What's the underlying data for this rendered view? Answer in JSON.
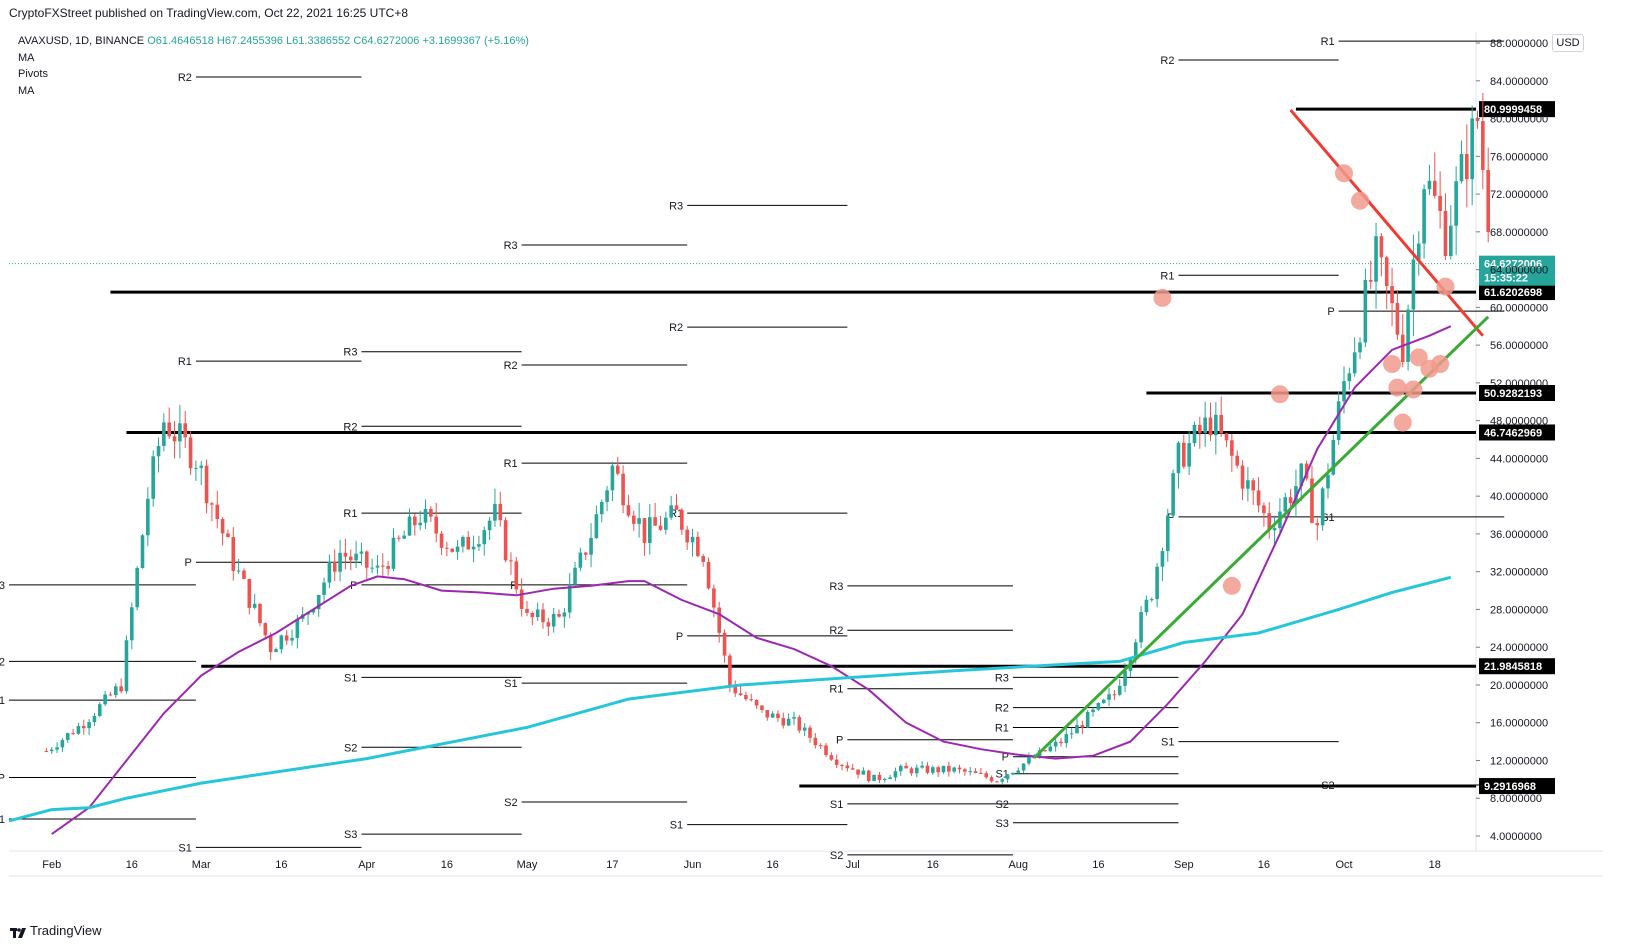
{
  "header": {
    "published": "CryptoFXStreet published on TradingView.com, Oct 22, 2021 16:25 UTC+8"
  },
  "legend": {
    "symbol": "AVAXUSD, 1D, BINANCE",
    "open": "O61.4646518",
    "high": "H67.2455396",
    "low": "L61.3386552",
    "close": "C64.6272006",
    "change": "+3.1699367 (+5.16%)",
    "indicators": [
      "MA",
      "Pivots",
      "MA"
    ]
  },
  "currency": "USD",
  "brand": "TradingView",
  "colors": {
    "up": "#26a69a",
    "down": "#ef5350",
    "ma_fast": "#9c27b0",
    "ma_slow": "#26c6da",
    "trend_red": "#f23b30",
    "trend_green": "#3aaa35",
    "marker": "#f19a8c",
    "current": "#26a69a",
    "level": "#000000"
  },
  "chart_data": {
    "type": "candlestick",
    "title": "AVAXUSD, 1D, BINANCE",
    "x_ticks": [
      "Feb",
      "16",
      "Mar",
      "16",
      "Apr",
      "16",
      "May",
      "17",
      "Jun",
      "16",
      "Jul",
      "16",
      "Aug",
      "16",
      "Sep",
      "16",
      "Oct",
      "18"
    ],
    "y_ticks": [
      "88.0000000",
      "84.0000000",
      "80.0000000",
      "76.0000000",
      "72.0000000",
      "68.0000000",
      "64.0000000",
      "60.0000000",
      "56.0000000",
      "52.0000000",
      "48.0000000",
      "44.0000000",
      "40.0000000",
      "36.0000000",
      "32.0000000",
      "28.0000000",
      "24.0000000",
      "20.0000000",
      "16.0000000",
      "12.0000000",
      "8.0000000",
      "4.0000000"
    ],
    "ylim": [
      1.6,
      90
    ],
    "xlim": [
      "2021-01-24",
      "2021-11-07"
    ],
    "current_price": {
      "value": 64.6272006,
      "label": "64.6272006",
      "timer": "15:35:22"
    },
    "horizontal_levels": [
      {
        "value": 80.9999458,
        "label": "80.9999458",
        "from": "2021-09-22"
      },
      {
        "value": 61.6202698,
        "label": "61.6202698",
        "from": "2021-02-12"
      },
      {
        "value": 50.9282193,
        "label": "50.9282193",
        "from": "2021-08-25"
      },
      {
        "value": 46.7462969,
        "label": "46.7462969",
        "from": "2021-02-15"
      },
      {
        "value": 21.9845818,
        "label": "21.9845818",
        "from": "2021-03-01"
      },
      {
        "value": 9.2916968,
        "label": "9.2916968",
        "from": "2021-06-21"
      }
    ],
    "trendlines": [
      {
        "color": "red",
        "from": {
          "x": "2021-09-21",
          "y": 80.9
        },
        "to": {
          "x": "2021-10-27",
          "y": 57.0
        }
      },
      {
        "color": "green",
        "from": {
          "x": "2021-08-04",
          "y": 12.3
        },
        "to": {
          "x": "2021-10-28",
          "y": 59.0
        }
      }
    ],
    "markers": [
      {
        "x": "2021-08-28",
        "y": 61.0
      },
      {
        "x": "2021-09-10",
        "y": 30.5
      },
      {
        "x": "2021-09-19",
        "y": 50.8
      },
      {
        "x": "2021-10-01",
        "y": 74.2
      },
      {
        "x": "2021-10-04",
        "y": 71.3
      },
      {
        "x": "2021-10-10",
        "y": 54.0
      },
      {
        "x": "2021-10-11",
        "y": 51.5
      },
      {
        "x": "2021-10-12",
        "y": 47.8
      },
      {
        "x": "2021-10-14",
        "y": 51.3
      },
      {
        "x": "2021-10-15",
        "y": 54.7
      },
      {
        "x": "2021-10-17",
        "y": 53.5
      },
      {
        "x": "2021-10-19",
        "y": 54.0
      },
      {
        "x": "2021-10-20",
        "y": 62.2
      }
    ],
    "pivots": [
      {
        "label": "R2",
        "y": 84.4,
        "from": "2021-02-28",
        "to": "2021-03-31"
      },
      {
        "label": "R1",
        "y": 54.3,
        "from": "2021-02-28",
        "to": "2021-03-31"
      },
      {
        "label": "P",
        "y": 33.0,
        "from": "2021-02-28",
        "to": "2021-03-31"
      },
      {
        "label": "R3",
        "y": 30.6,
        "from": "2021-01-24",
        "to": "2021-02-28"
      },
      {
        "label": "R2",
        "y": 22.5,
        "from": "2021-01-24",
        "to": "2021-02-28"
      },
      {
        "label": "R1",
        "y": 18.4,
        "from": "2021-01-24",
        "to": "2021-02-28"
      },
      {
        "label": "P",
        "y": 10.2,
        "from": "2021-01-24",
        "to": "2021-02-28"
      },
      {
        "label": "S1",
        "y": 5.8,
        "from": "2021-01-24",
        "to": "2021-02-28"
      },
      {
        "label": "S1",
        "y": 2.8,
        "from": "2021-02-28",
        "to": "2021-03-31"
      },
      {
        "label": "R3",
        "y": 55.3,
        "from": "2021-03-31",
        "to": "2021-04-30"
      },
      {
        "label": "R2",
        "y": 47.4,
        "from": "2021-03-31",
        "to": "2021-04-30"
      },
      {
        "label": "R1",
        "y": 38.2,
        "from": "2021-03-31",
        "to": "2021-04-30"
      },
      {
        "label": "P",
        "y": 30.6,
        "from": "2021-03-31",
        "to": "2021-04-30"
      },
      {
        "label": "S1",
        "y": 20.8,
        "from": "2021-03-31",
        "to": "2021-04-30"
      },
      {
        "label": "S2",
        "y": 13.4,
        "from": "2021-03-31",
        "to": "2021-04-30"
      },
      {
        "label": "S3",
        "y": 4.2,
        "from": "2021-03-31",
        "to": "2021-04-30"
      },
      {
        "label": "R3",
        "y": 66.6,
        "from": "2021-04-30",
        "to": "2021-05-31"
      },
      {
        "label": "R2",
        "y": 53.9,
        "from": "2021-04-30",
        "to": "2021-05-31"
      },
      {
        "label": "R1",
        "y": 43.5,
        "from": "2021-04-30",
        "to": "2021-05-31"
      },
      {
        "label": "P",
        "y": 30.6,
        "from": "2021-04-30",
        "to": "2021-05-31"
      },
      {
        "label": "S1",
        "y": 20.2,
        "from": "2021-04-30",
        "to": "2021-05-31"
      },
      {
        "label": "S2",
        "y": 7.6,
        "from": "2021-04-30",
        "to": "2021-05-31"
      },
      {
        "label": "R3",
        "y": 70.8,
        "from": "2021-05-31",
        "to": "2021-06-30"
      },
      {
        "label": "R2",
        "y": 57.9,
        "from": "2021-05-31",
        "to": "2021-06-30"
      },
      {
        "label": "R1",
        "y": 38.2,
        "from": "2021-05-31",
        "to": "2021-06-30"
      },
      {
        "label": "P",
        "y": 25.2,
        "from": "2021-05-31",
        "to": "2021-06-30"
      },
      {
        "label": "S1",
        "y": 5.2,
        "from": "2021-05-31",
        "to": "2021-06-30"
      },
      {
        "label": "R3",
        "y": 30.5,
        "from": "2021-06-30",
        "to": "2021-07-31"
      },
      {
        "label": "R2",
        "y": 25.8,
        "from": "2021-06-30",
        "to": "2021-07-31"
      },
      {
        "label": "R1",
        "y": 19.6,
        "from": "2021-06-30",
        "to": "2021-07-31"
      },
      {
        "label": "P",
        "y": 14.2,
        "from": "2021-06-30",
        "to": "2021-07-31"
      },
      {
        "label": "S1",
        "y": 7.4,
        "from": "2021-06-30",
        "to": "2021-07-31"
      },
      {
        "label": "S2",
        "y": 2.0,
        "from": "2021-06-30",
        "to": "2021-07-31"
      },
      {
        "label": "R3",
        "y": 20.8,
        "from": "2021-07-31",
        "to": "2021-08-31"
      },
      {
        "label": "R2",
        "y": 17.6,
        "from": "2021-07-31",
        "to": "2021-08-31"
      },
      {
        "label": "R1",
        "y": 15.5,
        "from": "2021-07-31",
        "to": "2021-08-31"
      },
      {
        "label": "P",
        "y": 12.4,
        "from": "2021-07-31",
        "to": "2021-08-31"
      },
      {
        "label": "S1",
        "y": 10.6,
        "from": "2021-07-31",
        "to": "2021-08-31"
      },
      {
        "label": "S2",
        "y": 7.4,
        "from": "2021-07-31",
        "to": "2021-08-31"
      },
      {
        "label": "S3",
        "y": 5.4,
        "from": "2021-07-31",
        "to": "2021-08-31"
      },
      {
        "label": "R2",
        "y": 86.2,
        "from": "2021-08-31",
        "to": "2021-09-30"
      },
      {
        "label": "R1",
        "y": 63.4,
        "from": "2021-08-31",
        "to": "2021-09-30"
      },
      {
        "label": "P",
        "y": 37.8,
        "from": "2021-08-31",
        "to": "2021-09-30"
      },
      {
        "label": "S1",
        "y": 14.0,
        "from": "2021-08-31",
        "to": "2021-09-30"
      },
      {
        "label": "R1",
        "y": 88.2,
        "from": "2021-09-30",
        "to": "2021-10-31"
      },
      {
        "label": "P",
        "y": 59.6,
        "from": "2021-09-30",
        "to": "2021-10-31"
      },
      {
        "label": "S1",
        "y": 37.8,
        "from": "2021-09-30",
        "to": "2021-10-31"
      },
      {
        "label": "S2",
        "y": 9.4,
        "from": "2021-09-30",
        "to": "2021-10-31"
      }
    ],
    "moving_averages": [
      {
        "color": "purple",
        "points": [
          [
            "2021-01-24",
            0
          ],
          [
            "2021-02-01",
            4.2
          ],
          [
            "2021-02-08",
            7.0
          ],
          [
            "2021-02-15",
            12.0
          ],
          [
            "2021-02-22",
            17.0
          ],
          [
            "2021-03-01",
            21.0
          ],
          [
            "2021-03-08",
            23.5
          ],
          [
            "2021-03-15",
            25.5
          ],
          [
            "2021-03-22",
            28.0
          ],
          [
            "2021-03-29",
            30.5
          ],
          [
            "2021-04-03",
            31.5
          ],
          [
            "2021-04-08",
            31.2
          ],
          [
            "2021-04-15",
            30.0
          ],
          [
            "2021-04-22",
            29.8
          ],
          [
            "2021-04-29",
            29.5
          ],
          [
            "2021-05-06",
            30.2
          ],
          [
            "2021-05-13",
            30.5
          ],
          [
            "2021-05-20",
            31.0
          ],
          [
            "2021-05-23",
            31.0
          ],
          [
            "2021-05-30",
            29.0
          ],
          [
            "2021-06-06",
            27.5
          ],
          [
            "2021-06-13",
            25.0
          ],
          [
            "2021-06-20",
            23.8
          ],
          [
            "2021-06-27",
            22.0
          ],
          [
            "2021-07-04",
            19.5
          ],
          [
            "2021-07-11",
            16.0
          ],
          [
            "2021-07-18",
            14.0
          ],
          [
            "2021-07-25",
            13.2
          ],
          [
            "2021-08-01",
            12.6
          ],
          [
            "2021-08-08",
            12.2
          ],
          [
            "2021-08-15",
            12.5
          ],
          [
            "2021-08-22",
            14.0
          ],
          [
            "2021-08-29",
            18.0
          ],
          [
            "2021-09-05",
            22.5
          ],
          [
            "2021-09-12",
            27.5
          ],
          [
            "2021-09-19",
            36.0
          ],
          [
            "2021-09-26",
            45.0
          ],
          [
            "2021-10-03",
            51.5
          ],
          [
            "2021-10-10",
            55.5
          ],
          [
            "2021-10-17",
            57.0
          ],
          [
            "2021-10-21",
            58.0
          ]
        ]
      },
      {
        "color": "cyan",
        "points": [
          [
            "2021-01-24",
            5.6
          ],
          [
            "2021-02-01",
            6.8
          ],
          [
            "2021-02-08",
            7.0
          ],
          [
            "2021-02-15",
            8.0
          ],
          [
            "2021-03-01",
            9.6
          ],
          [
            "2021-04-01",
            12.2
          ],
          [
            "2021-05-01",
            15.5
          ],
          [
            "2021-05-20",
            18.5
          ],
          [
            "2021-06-10",
            20.0
          ],
          [
            "2021-07-01",
            20.8
          ],
          [
            "2021-07-20",
            21.5
          ],
          [
            "2021-08-10",
            22.2
          ],
          [
            "2021-08-20",
            22.5
          ],
          [
            "2021-09-01",
            24.5
          ],
          [
            "2021-09-15",
            25.5
          ],
          [
            "2021-09-30",
            28.0
          ],
          [
            "2021-10-10",
            29.8
          ],
          [
            "2021-10-21",
            31.4
          ]
        ]
      }
    ]
  }
}
